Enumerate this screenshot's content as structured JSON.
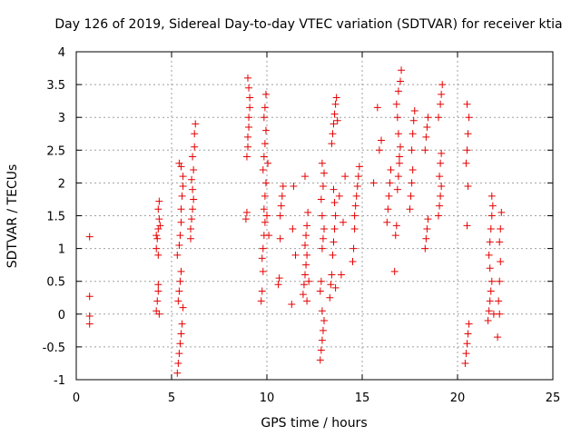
{
  "chart_data": {
    "type": "scatter",
    "title": "Day 126 of 2019, Sidereal Day-to-day VTEC variation (SDTVAR) for receiver ktia",
    "xlabel": "GPS time / hours",
    "ylabel": "SDTVAR / TECUs",
    "xlim": [
      0,
      25
    ],
    "ylim": [
      -1,
      4
    ],
    "xticks": [
      "0",
      "5",
      "10",
      "15",
      "20",
      "25"
    ],
    "yticks": [
      "-1",
      "-0.5",
      "0",
      "0.5",
      "1",
      "1.5",
      "2",
      "2.5",
      "3",
      "3.5",
      "4"
    ],
    "grid": true,
    "marker": "plus",
    "color": "#e60000",
    "series": [
      {
        "points": [
          [
            0.7,
            1.18
          ],
          [
            0.7,
            0.27
          ],
          [
            0.7,
            -0.03
          ],
          [
            0.7,
            -0.15
          ],
          [
            4.2,
            0.05
          ],
          [
            4.25,
            0.2
          ],
          [
            4.3,
            0.35
          ],
          [
            4.3,
            0.45
          ],
          [
            4.35,
            0.0
          ],
          [
            4.2,
            1.0
          ],
          [
            4.25,
            1.15
          ],
          [
            4.3,
            1.3
          ],
          [
            4.35,
            1.45
          ],
          [
            4.3,
            1.6
          ],
          [
            4.35,
            1.72
          ],
          [
            4.2,
            1.2
          ],
          [
            4.4,
            1.35
          ],
          [
            4.3,
            0.9
          ],
          [
            5.3,
            -0.9
          ],
          [
            5.35,
            -0.75
          ],
          [
            5.4,
            -0.6
          ],
          [
            5.45,
            -0.45
          ],
          [
            5.5,
            -0.3
          ],
          [
            5.35,
            0.2
          ],
          [
            5.4,
            0.35
          ],
          [
            5.45,
            0.5
          ],
          [
            5.5,
            0.65
          ],
          [
            5.3,
            0.9
          ],
          [
            5.4,
            1.05
          ],
          [
            5.45,
            1.2
          ],
          [
            5.5,
            1.4
          ],
          [
            5.5,
            1.6
          ],
          [
            5.55,
            1.8
          ],
          [
            5.6,
            1.95
          ],
          [
            5.6,
            2.1
          ],
          [
            5.5,
            2.25
          ],
          [
            5.4,
            2.3
          ],
          [
            5.6,
            0.1
          ],
          [
            5.55,
            -0.15
          ],
          [
            6.0,
            1.3
          ],
          [
            6.05,
            1.45
          ],
          [
            6.1,
            1.6
          ],
          [
            6.15,
            1.75
          ],
          [
            6.1,
            1.9
          ],
          [
            6.05,
            2.05
          ],
          [
            6.15,
            2.2
          ],
          [
            6.1,
            2.4
          ],
          [
            6.2,
            2.55
          ],
          [
            6.2,
            2.75
          ],
          [
            6.25,
            2.9
          ],
          [
            6.0,
            1.15
          ],
          [
            8.9,
            1.45
          ],
          [
            8.95,
            1.55
          ],
          [
            9.0,
            2.55
          ],
          [
            9.0,
            2.7
          ],
          [
            9.05,
            2.85
          ],
          [
            9.05,
            3.0
          ],
          [
            9.1,
            3.15
          ],
          [
            9.1,
            3.3
          ],
          [
            9.05,
            3.45
          ],
          [
            9.0,
            3.6
          ],
          [
            8.95,
            2.4
          ],
          [
            9.7,
            0.2
          ],
          [
            9.75,
            0.35
          ],
          [
            9.8,
            0.65
          ],
          [
            9.75,
            0.85
          ],
          [
            9.8,
            1.0
          ],
          [
            9.85,
            1.2
          ],
          [
            9.9,
            1.4
          ],
          [
            9.85,
            1.6
          ],
          [
            9.9,
            1.8
          ],
          [
            9.95,
            2.0
          ],
          [
            9.8,
            2.2
          ],
          [
            9.85,
            2.4
          ],
          [
            9.9,
            2.6
          ],
          [
            9.95,
            2.8
          ],
          [
            9.85,
            3.0
          ],
          [
            9.9,
            3.15
          ],
          [
            9.95,
            3.35
          ],
          [
            10.0,
            1.5
          ],
          [
            10.05,
            2.3
          ],
          [
            10.1,
            1.2
          ],
          [
            10.6,
            0.45
          ],
          [
            10.65,
            0.55
          ],
          [
            10.7,
            1.5
          ],
          [
            10.75,
            1.65
          ],
          [
            10.8,
            1.8
          ],
          [
            10.85,
            1.95
          ],
          [
            10.7,
            1.15
          ],
          [
            11.3,
            0.15
          ],
          [
            11.35,
            1.3
          ],
          [
            11.4,
            1.95
          ],
          [
            11.5,
            0.9
          ],
          [
            11.9,
            0.3
          ],
          [
            11.95,
            0.45
          ],
          [
            12.0,
            0.6
          ],
          [
            12.05,
            0.75
          ],
          [
            12.1,
            0.9
          ],
          [
            12.0,
            1.05
          ],
          [
            12.05,
            1.2
          ],
          [
            12.1,
            1.35
          ],
          [
            12.15,
            1.55
          ],
          [
            12.0,
            2.1
          ],
          [
            12.1,
            0.2
          ],
          [
            12.2,
            0.5
          ],
          [
            12.8,
            -0.7
          ],
          [
            12.85,
            -0.55
          ],
          [
            12.9,
            -0.4
          ],
          [
            12.95,
            -0.25
          ],
          [
            13.0,
            -0.1
          ],
          [
            12.9,
            0.05
          ],
          [
            12.8,
            0.35
          ],
          [
            12.85,
            0.5
          ],
          [
            12.9,
            1.0
          ],
          [
            12.95,
            1.15
          ],
          [
            13.0,
            1.3
          ],
          [
            12.9,
            1.5
          ],
          [
            12.85,
            1.75
          ],
          [
            12.95,
            1.95
          ],
          [
            13.0,
            2.15
          ],
          [
            12.9,
            2.3
          ],
          [
            13.3,
            0.25
          ],
          [
            13.35,
            0.45
          ],
          [
            13.4,
            0.6
          ],
          [
            13.45,
            0.9
          ],
          [
            13.5,
            1.1
          ],
          [
            13.55,
            1.3
          ],
          [
            13.6,
            1.5
          ],
          [
            13.55,
            1.7
          ],
          [
            13.5,
            1.9
          ],
          [
            13.4,
            2.6
          ],
          [
            13.45,
            2.75
          ],
          [
            13.5,
            2.9
          ],
          [
            13.55,
            3.05
          ],
          [
            13.6,
            3.2
          ],
          [
            13.65,
            3.3
          ],
          [
            13.7,
            2.95
          ],
          [
            13.8,
            1.8
          ],
          [
            13.9,
            0.6
          ],
          [
            14.0,
            1.4
          ],
          [
            14.1,
            2.1
          ],
          [
            13.6,
            0.4
          ],
          [
            14.5,
            0.8
          ],
          [
            14.55,
            1.0
          ],
          [
            14.6,
            1.5
          ],
          [
            14.65,
            1.65
          ],
          [
            14.7,
            1.8
          ],
          [
            14.75,
            1.95
          ],
          [
            14.8,
            2.1
          ],
          [
            14.85,
            2.25
          ],
          [
            14.6,
            1.3
          ],
          [
            15.6,
            2.0
          ],
          [
            15.8,
            3.15
          ],
          [
            15.9,
            2.5
          ],
          [
            16.0,
            2.65
          ],
          [
            16.3,
            1.4
          ],
          [
            16.35,
            1.6
          ],
          [
            16.4,
            1.8
          ],
          [
            16.45,
            2.0
          ],
          [
            16.5,
            2.2
          ],
          [
            16.7,
            0.65
          ],
          [
            16.75,
            1.2
          ],
          [
            16.8,
            1.35
          ],
          [
            16.85,
            1.9
          ],
          [
            16.9,
            2.1
          ],
          [
            16.95,
            2.3
          ],
          [
            17.0,
            2.55
          ],
          [
            16.9,
            2.75
          ],
          [
            16.85,
            3.0
          ],
          [
            16.8,
            3.2
          ],
          [
            16.9,
            3.4
          ],
          [
            17.0,
            3.55
          ],
          [
            17.05,
            3.72
          ],
          [
            16.95,
            2.4
          ],
          [
            17.5,
            1.6
          ],
          [
            17.55,
            1.8
          ],
          [
            17.6,
            2.0
          ],
          [
            17.65,
            2.2
          ],
          [
            17.6,
            2.5
          ],
          [
            17.65,
            2.75
          ],
          [
            17.7,
            2.95
          ],
          [
            17.75,
            3.1
          ],
          [
            18.3,
            1.0
          ],
          [
            18.35,
            1.15
          ],
          [
            18.4,
            1.3
          ],
          [
            18.45,
            1.45
          ],
          [
            18.3,
            2.5
          ],
          [
            18.35,
            2.7
          ],
          [
            18.4,
            2.85
          ],
          [
            18.45,
            3.0
          ],
          [
            19.0,
            1.5
          ],
          [
            19.05,
            1.65
          ],
          [
            19.1,
            1.8
          ],
          [
            19.15,
            1.95
          ],
          [
            19.05,
            2.1
          ],
          [
            19.1,
            2.3
          ],
          [
            19.15,
            2.45
          ],
          [
            19.0,
            3.0
          ],
          [
            19.1,
            3.2
          ],
          [
            19.15,
            3.35
          ],
          [
            19.2,
            3.5
          ],
          [
            20.4,
            -0.75
          ],
          [
            20.45,
            -0.6
          ],
          [
            20.5,
            -0.45
          ],
          [
            20.55,
            -0.3
          ],
          [
            20.6,
            -0.15
          ],
          [
            20.5,
            1.35
          ],
          [
            20.45,
            2.3
          ],
          [
            20.5,
            2.5
          ],
          [
            20.55,
            2.75
          ],
          [
            20.6,
            3.0
          ],
          [
            20.5,
            3.2
          ],
          [
            20.55,
            1.95
          ],
          [
            21.6,
            -0.1
          ],
          [
            21.65,
            0.05
          ],
          [
            21.7,
            0.2
          ],
          [
            21.75,
            0.35
          ],
          [
            21.8,
            0.5
          ],
          [
            21.7,
            0.7
          ],
          [
            21.65,
            0.9
          ],
          [
            21.7,
            1.1
          ],
          [
            21.75,
            1.3
          ],
          [
            21.8,
            1.5
          ],
          [
            21.85,
            1.65
          ],
          [
            21.8,
            1.8
          ],
          [
            21.9,
            0.0
          ],
          [
            22.1,
            -0.35
          ],
          [
            22.15,
            0.2
          ],
          [
            22.2,
            0.5
          ],
          [
            22.25,
            0.8
          ],
          [
            22.2,
            1.1
          ],
          [
            22.25,
            1.3
          ],
          [
            22.3,
            1.55
          ],
          [
            22.2,
            0.0
          ]
        ]
      }
    ]
  }
}
